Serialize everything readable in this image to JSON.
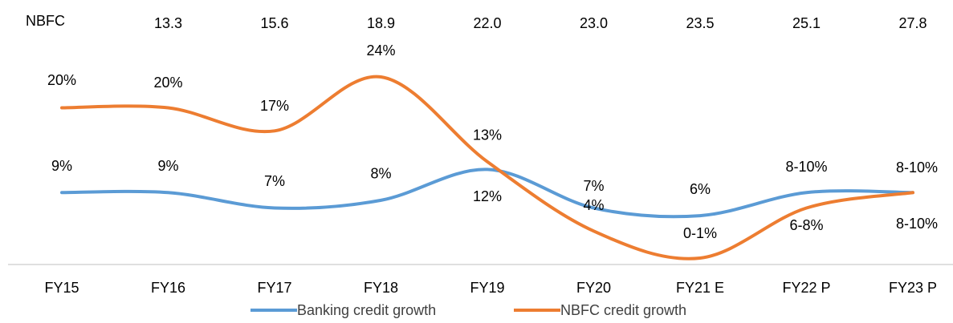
{
  "chart_data": {
    "type": "line",
    "top_row": {
      "label": "NBFC",
      "values": [
        "13.3",
        "15.6",
        "18.9",
        "22.0",
        "23.0",
        "23.5",
        "25.1",
        "27.8"
      ]
    },
    "categories": [
      "FY15",
      "FY16",
      "FY17",
      "FY18",
      "FY19",
      "FY20",
      "FY21 E",
      "FY22 P",
      "FY23 P"
    ],
    "series": [
      {
        "name": "Banking credit growth",
        "color": "#5b9bd5",
        "values": [
          9,
          9,
          7,
          8,
          12,
          7,
          6,
          9,
          9
        ],
        "value_labels": [
          "9%",
          "9%",
          "7%",
          "8%",
          "12%",
          "7%",
          "6%",
          "8-10%",
          "8-10%"
        ]
      },
      {
        "name": "NBFC credit growth",
        "color": "#ed7d31",
        "values": [
          20,
          20,
          17,
          24,
          13,
          4,
          0.5,
          7,
          9
        ],
        "value_labels": [
          "20%",
          "20%",
          "17%",
          "24%",
          "13%",
          "4%",
          "0-1%",
          "6-8%",
          "8-10%"
        ]
      }
    ]
  }
}
